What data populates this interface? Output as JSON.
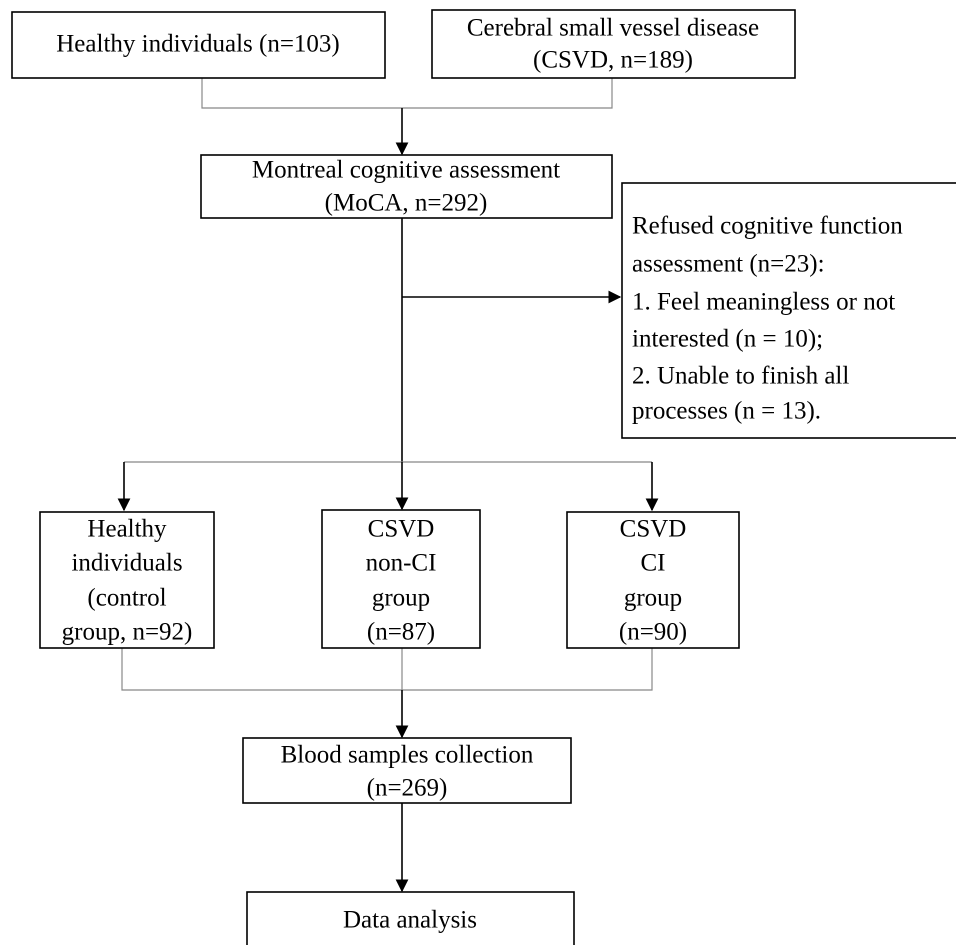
{
  "nodes": [
    {
      "lines": [
        "Healthy individuals (n=103)"
      ]
    },
    {
      "lines": [
        "Cerebral small vessel disease",
        "(CSVD, n=189)"
      ]
    },
    {
      "lines": [
        "Montreal cognitive assessment",
        "(MoCA, n=292)"
      ]
    },
    {
      "lines": [
        "Refused cognitive function",
        "assessment (n=23):",
        "1. Feel meaningless or not",
        "interested (n = 10);",
        "2. Unable to finish all",
        "processes (n = 13)."
      ]
    },
    {
      "lines": [
        "Healthy",
        "individuals",
        "(control",
        "group, n=92)"
      ]
    },
    {
      "lines": [
        "CSVD",
        "non-CI",
        "group",
        "(n=87)"
      ]
    },
    {
      "lines": [
        "CSVD",
        "CI",
        "group",
        "(n=90)"
      ]
    },
    {
      "lines": [
        "Blood samples collection",
        "(n=269)"
      ]
    },
    {
      "lines": [
        "Data analysis"
      ]
    }
  ]
}
